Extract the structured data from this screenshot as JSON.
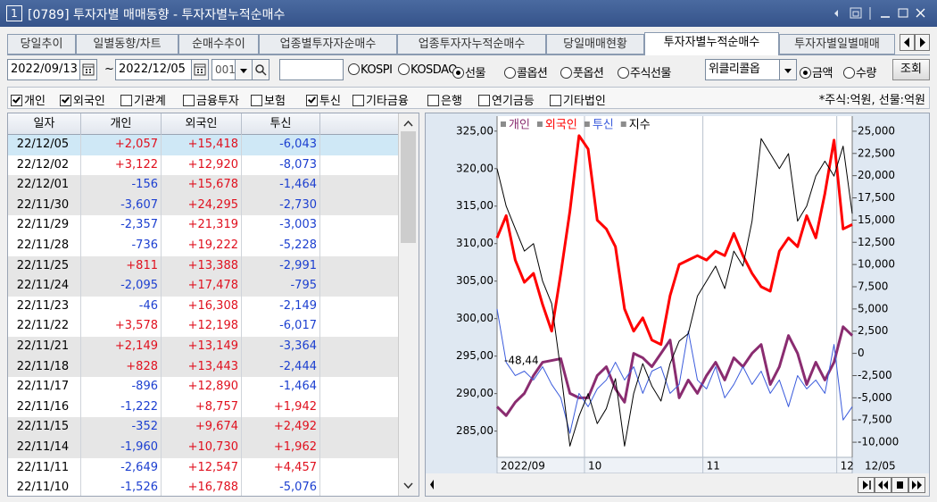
{
  "window": {
    "badge": "1",
    "title": "[0789] 투자자별 매매동향 - 투자자별누적순매수"
  },
  "tabs": [
    {
      "label": "당일추이"
    },
    {
      "label": "일별동향/차트"
    },
    {
      "label": "순매수추이"
    },
    {
      "label": "업종별투자자순매수"
    },
    {
      "label": "업종투자자누적순매수"
    },
    {
      "label": "당일매매현황"
    },
    {
      "label": "투자자별누적순매수",
      "active": true
    },
    {
      "label": "투자자별일별매매"
    }
  ],
  "controls": {
    "start_date": "2022/09/13",
    "separator": "~",
    "end_date": "2022/12/05",
    "code": "001",
    "market_options": [
      {
        "label": "KOSPI",
        "checked": false
      },
      {
        "label": "KOSDAQ",
        "checked": false
      },
      {
        "label": "선물",
        "checked": true
      },
      {
        "label": "콜옵션",
        "checked": false
      },
      {
        "label": "풋옵션",
        "checked": false
      },
      {
        "label": "주식선물",
        "checked": false
      }
    ],
    "product_select": "위클리콜옵",
    "unit_options": [
      {
        "label": "금액",
        "checked": true
      },
      {
        "label": "수량",
        "checked": false
      }
    ],
    "query_button": "조회"
  },
  "filters": [
    {
      "label": "개인",
      "checked": true
    },
    {
      "label": "외국인",
      "checked": true
    },
    {
      "label": "기관계",
      "checked": false
    },
    {
      "label": "금융투자",
      "checked": false
    },
    {
      "label": "보험",
      "checked": false
    },
    {
      "label": "투신",
      "checked": true
    },
    {
      "label": "기타금융",
      "checked": false
    },
    {
      "label": "은행",
      "checked": false
    },
    {
      "label": "연기금등",
      "checked": false
    },
    {
      "label": "기타법인",
      "checked": false
    }
  ],
  "unit_note": "*주식:억원, 선물:억원",
  "table": {
    "columns": [
      "일자",
      "개인",
      "외국인",
      "투신"
    ],
    "rows": [
      [
        "22/12/05",
        "+2,057",
        "+15,418",
        "-6,043"
      ],
      [
        "22/12/02",
        "+3,122",
        "+12,920",
        "-8,073"
      ],
      [
        "22/12/01",
        "-156",
        "+15,678",
        "-1,464"
      ],
      [
        "22/11/30",
        "-3,607",
        "+24,295",
        "-2,730"
      ],
      [
        "22/11/29",
        "-2,357",
        "+21,319",
        "-3,003"
      ],
      [
        "22/11/28",
        "-736",
        "+19,222",
        "-5,228"
      ],
      [
        "22/11/25",
        "+811",
        "+13,388",
        "-2,991"
      ],
      [
        "22/11/24",
        "-2,095",
        "+17,478",
        "-795"
      ],
      [
        "22/11/23",
        "-46",
        "+16,308",
        "-2,149"
      ],
      [
        "22/11/22",
        "+3,578",
        "+12,198",
        "-6,017"
      ],
      [
        "22/11/21",
        "+2,149",
        "+13,149",
        "-3,364"
      ],
      [
        "22/11/18",
        "+828",
        "+13,443",
        "-2,444"
      ],
      [
        "22/11/17",
        "-896",
        "+12,890",
        "-1,464"
      ],
      [
        "22/11/16",
        "-1,222",
        "+8,757",
        "+1,942"
      ],
      [
        "22/11/15",
        "-352",
        "+9,674",
        "+2,492"
      ],
      [
        "22/11/14",
        "-1,960",
        "+10,730",
        "+1,962"
      ],
      [
        "22/11/11",
        "-2,649",
        "+12,547",
        "+4,457"
      ],
      [
        "22/11/10",
        "-1,526",
        "+16,788",
        "-5,076"
      ]
    ]
  },
  "chart_data": {
    "type": "line",
    "xlim": [
      0,
      39
    ],
    "xticks": [
      {
        "value": 0,
        "label": "2022/09"
      },
      {
        "value": 9.6,
        "label": "10"
      },
      {
        "value": 22.6,
        "label": "11"
      },
      {
        "value": 37.3,
        "label": "12"
      }
    ],
    "last_date_label": "12/05",
    "ylim": [
      281.5,
      327
    ],
    "yticks": [
      {
        "value": 325,
        "label": "325,00"
      },
      {
        "value": 320,
        "label": "320,00"
      },
      {
        "value": 315,
        "label": "315,00"
      },
      {
        "value": 310,
        "label": "310,00"
      },
      {
        "value": 305,
        "label": "305,00"
      },
      {
        "value": 300,
        "label": "300,00"
      },
      {
        "value": 295,
        "label": "295,00"
      },
      {
        "value": 290,
        "label": "290,00"
      },
      {
        "value": 285,
        "label": "285,00"
      }
    ],
    "y2lim": [
      -11700,
      26700
    ],
    "y2ticks": [
      {
        "value": 25000,
        "label": "25,000"
      },
      {
        "value": 22500,
        "label": "22,500"
      },
      {
        "value": 20000,
        "label": "20,000"
      },
      {
        "value": 17500,
        "label": "17,500"
      },
      {
        "value": 15000,
        "label": "15,000"
      },
      {
        "value": 12500,
        "label": "12,500"
      },
      {
        "value": 10000,
        "label": "10,000"
      },
      {
        "value": 7500,
        "label": "7,500"
      },
      {
        "value": 5000,
        "label": "5,000"
      },
      {
        "value": 2500,
        "label": "2,500"
      },
      0,
      {
        "value": -2500,
        "label": "-2,500"
      },
      {
        "value": -5000,
        "label": "-5,000"
      },
      {
        "value": -7500,
        "label": "-7,500"
      },
      {
        "value": -10000,
        "label": "-10,000"
      }
    ],
    "annotation": "-48,44",
    "series": [
      {
        "name": "개인",
        "color": "#8a2c70",
        "axis": "y2",
        "width": 3,
        "values": [
          -6000,
          -7000,
          -5500,
          -4500,
          -2500,
          -1000,
          -800,
          -600,
          -4500,
          -5000,
          -5000,
          -2500,
          -1500,
          -4000,
          -5500,
          0,
          -500,
          -1500,
          0,
          1500,
          -5000,
          -3000,
          -4500,
          -2500,
          -1000,
          -3000,
          -500,
          -1500,
          0,
          1000,
          -3500,
          -1500,
          2000,
          0,
          -3500,
          -1000,
          -3000,
          -1000,
          3000,
          2000
        ]
      },
      {
        "name": "외국인",
        "color": "#ff0000",
        "axis": "y2",
        "width": 3,
        "values": [
          13000,
          15500,
          10500,
          8000,
          9000,
          5500,
          2500,
          9000,
          16000,
          24500,
          23000,
          15000,
          14000,
          12000,
          5000,
          2500,
          4000,
          1500,
          1000,
          6500,
          10000,
          10500,
          11000,
          10500,
          11500,
          11000,
          13500,
          11000,
          9000,
          7500,
          7000,
          11500,
          13000,
          12000,
          15500,
          13000,
          18000,
          24000,
          14000,
          14500
        ]
      },
      {
        "name": "투신",
        "color": "#3a5bdc",
        "axis": "y2",
        "width": 1,
        "values": [
          5000,
          -1000,
          -2500,
          -2000,
          -3000,
          -1500,
          -3500,
          -5000,
          -9000,
          -4500,
          -6000,
          -4000,
          -3000,
          -1000,
          -3000,
          -1500,
          -4500,
          -2000,
          -1500,
          -4500,
          -3500,
          2500,
          -3000,
          -4000,
          -1500,
          -5000,
          -3500,
          -1500,
          -3500,
          -2000,
          -4500,
          -3000,
          -6000,
          -2500,
          -4000,
          -3000,
          -4500,
          1000,
          -7500,
          -6000
        ]
      },
      {
        "name": "지수",
        "color": "#000000",
        "width": 1,
        "values": [
          320,
          315,
          312,
          309,
          310,
          305,
          302,
          293,
          283,
          287,
          290,
          286,
          288,
          292,
          283,
          290,
          294,
          291,
          289,
          294,
          297,
          298,
          303,
          305,
          307,
          304,
          309,
          307,
          313,
          324,
          322,
          320,
          322,
          313,
          315,
          319,
          321,
          319,
          323,
          314
        ]
      }
    ]
  }
}
